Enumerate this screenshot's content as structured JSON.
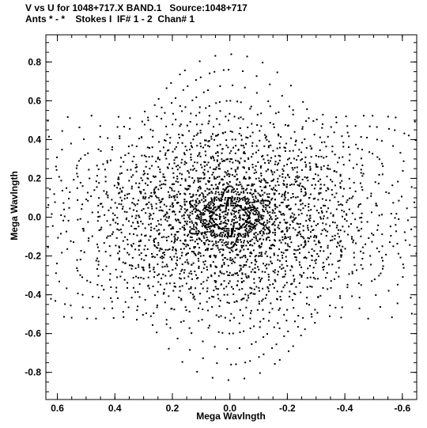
{
  "header": {
    "line1": "V vs U for 1048+717.X BAND.1   Source:1048+717",
    "line2": "Ants * - *    Stokes I  IF# 1 - 2  Chan# 1"
  },
  "chart_data": {
    "type": "scatter",
    "title": "V vs U for 1048+717.X BAND.1   Source:1048+717",
    "subtitle": "Ants * - *    Stokes I  IF# 1 - 2  Chan# 1",
    "xlabel": "Mega Wavlngth",
    "ylabel": "Mega Wavlngth",
    "xlim": [
      0.64,
      -0.65
    ],
    "ylim": [
      -0.94,
      0.94
    ],
    "x_ticks": [
      0.6,
      0.4,
      0.2,
      0.0,
      -0.2,
      -0.4,
      -0.6
    ],
    "x_tick_labels": [
      "0.6",
      "0.4",
      "0.2",
      "0.0",
      "-0.2",
      "-0.4",
      "-0.6"
    ],
    "y_ticks": [
      0.8,
      0.6,
      0.4,
      0.2,
      0.0,
      -0.2,
      -0.4,
      -0.6,
      -0.8
    ],
    "y_tick_labels": [
      "0.8",
      "0.6",
      "0.4",
      "0.2",
      "0.0",
      "-0.2",
      "-0.4",
      "-0.6",
      "-0.8"
    ],
    "grid": false,
    "marker_color": "#000000",
    "baseline_tracks": [
      {
        "u_max": 0.015,
        "v_max": 0.1,
        "start_deg": 20
      },
      {
        "u_max": 0.035,
        "v_max": 0.16,
        "start_deg": 35
      },
      {
        "u_max": 0.06,
        "v_max": 0.22,
        "start_deg": 10
      },
      {
        "u_max": 0.09,
        "v_max": 0.3,
        "start_deg": 50
      },
      {
        "u_max": 0.12,
        "v_max": 0.36,
        "start_deg": 25
      },
      {
        "u_max": 0.16,
        "v_max": 0.44,
        "start_deg": 40
      },
      {
        "u_max": 0.2,
        "v_max": 0.52,
        "start_deg": 15
      },
      {
        "u_max": 0.24,
        "v_max": 0.6,
        "start_deg": 55
      },
      {
        "u_max": 0.28,
        "v_max": 0.68,
        "start_deg": 30
      },
      {
        "u_max": 0.32,
        "v_max": 0.76,
        "start_deg": 45
      },
      {
        "u_max": 0.36,
        "v_max": 0.84,
        "start_deg": 20
      },
      {
        "u_max": 0.1,
        "v_max": 0.06,
        "start_deg": 60
      },
      {
        "u_max": 0.16,
        "v_max": 0.1,
        "start_deg": 70
      },
      {
        "u_max": 0.22,
        "v_max": 0.13,
        "start_deg": 65
      },
      {
        "u_max": 0.28,
        "v_max": 0.17,
        "start_deg": 80
      },
      {
        "u_max": 0.34,
        "v_max": 0.21,
        "start_deg": 75
      },
      {
        "u_max": 0.4,
        "v_max": 0.25,
        "start_deg": 85
      },
      {
        "u_max": 0.46,
        "v_max": 0.29,
        "start_deg": 70
      },
      {
        "u_max": 0.52,
        "v_max": 0.33,
        "start_deg": 90
      },
      {
        "u_max": 0.58,
        "v_max": 0.37,
        "start_deg": 80
      },
      {
        "u_max": 0.62,
        "v_max": 0.4,
        "start_deg": 85
      }
    ]
  }
}
